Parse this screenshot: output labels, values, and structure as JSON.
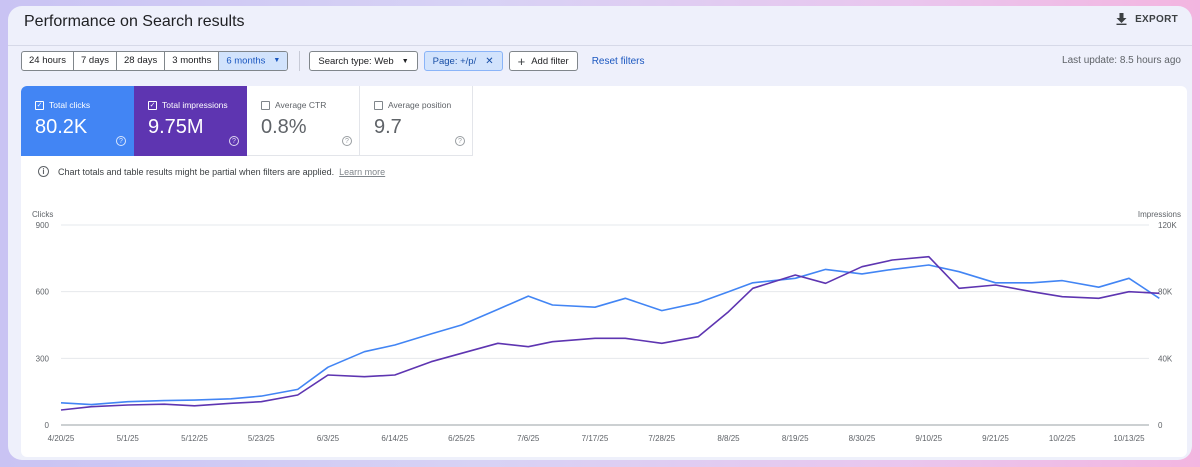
{
  "header": {
    "title": "Performance on Search results",
    "export_label": "EXPORT"
  },
  "filters": {
    "ranges": [
      "24 hours",
      "7 days",
      "28 days",
      "3 months",
      "6 months"
    ],
    "active_range": "6 months",
    "search_type": "Search type: Web",
    "page_filter": "Page: +/p/",
    "add_filter": "Add filter",
    "reset": "Reset filters",
    "last_update": "Last update: 8.5 hours ago"
  },
  "metrics": [
    {
      "label": "Total clicks",
      "value": "80.2K",
      "checked": true
    },
    {
      "label": "Total impressions",
      "value": "9.75M",
      "checked": true
    },
    {
      "label": "Average CTR",
      "value": "0.8%",
      "checked": false
    },
    {
      "label": "Average position",
      "value": "9.7",
      "checked": false
    }
  ],
  "notice": {
    "text": "Chart totals and table results might be partial when filters are applied.",
    "link": "Learn more"
  },
  "colors": {
    "clicks": "#4285f4",
    "impressions": "#5e35b1",
    "link": "#1a57c0"
  },
  "icons": {
    "export": "download-icon",
    "info": "info-icon",
    "help": "help-icon",
    "close": "close-icon",
    "add": "plus-icon",
    "dropdown": "caret-down-icon"
  },
  "chart_data": {
    "type": "line",
    "x_tick_labels": [
      "4/20/25",
      "5/1/25",
      "5/12/25",
      "5/23/25",
      "6/3/25",
      "6/14/25",
      "6/25/25",
      "7/6/25",
      "7/17/25",
      "7/28/25",
      "8/8/25",
      "8/19/25",
      "8/30/25",
      "9/10/25",
      "9/21/25",
      "10/2/25",
      "10/13/25"
    ],
    "y_left": {
      "label": "Clicks",
      "ticks": [
        "900",
        "600",
        "300",
        "0"
      ],
      "range": [
        0,
        900
      ]
    },
    "y_right": {
      "label": "Impressions",
      "ticks": [
        "120K",
        "80K",
        "40K",
        "0"
      ],
      "range": [
        0,
        120000
      ]
    },
    "grid": true,
    "series": [
      {
        "name": "Clicks",
        "axis": "left",
        "color": "#4285f4",
        "x": [
          "4/20/25",
          "4/25/25",
          "5/1/25",
          "5/7/25",
          "5/12/25",
          "5/18/25",
          "5/23/25",
          "5/29/25",
          "6/3/25",
          "6/9/25",
          "6/14/25",
          "6/20/25",
          "6/25/25",
          "7/1/25",
          "7/6/25",
          "7/10/25",
          "7/17/25",
          "7/22/25",
          "7/28/25",
          "8/3/25",
          "8/8/25",
          "8/12/25",
          "8/19/25",
          "8/24/25",
          "8/30/25",
          "9/4/25",
          "9/10/25",
          "9/15/25",
          "9/21/25",
          "9/27/25",
          "10/2/25",
          "10/8/25",
          "10/13/25",
          "10/18/25"
        ],
        "values": [
          100,
          92,
          105,
          110,
          112,
          118,
          130,
          160,
          260,
          330,
          360,
          410,
          450,
          520,
          580,
          540,
          530,
          570,
          515,
          550,
          600,
          640,
          660,
          700,
          680,
          700,
          720,
          690,
          640,
          640,
          650,
          620,
          660,
          570
        ]
      },
      {
        "name": "Impressions",
        "axis": "right",
        "color": "#5e35b1",
        "x": [
          "4/20/25",
          "4/25/25",
          "5/1/25",
          "5/7/25",
          "5/12/25",
          "5/18/25",
          "5/23/25",
          "5/29/25",
          "6/3/25",
          "6/9/25",
          "6/14/25",
          "6/20/25",
          "6/25/25",
          "7/1/25",
          "7/6/25",
          "7/10/25",
          "7/17/25",
          "7/22/25",
          "7/28/25",
          "8/3/25",
          "8/8/25",
          "8/12/25",
          "8/19/25",
          "8/24/25",
          "8/30/25",
          "9/4/25",
          "9/10/25",
          "9/15/25",
          "9/21/25",
          "9/27/25",
          "10/2/25",
          "10/8/25",
          "10/13/25",
          "10/18/25"
        ],
        "values": [
          9000,
          11000,
          12000,
          12500,
          11500,
          13000,
          14000,
          18000,
          30000,
          29000,
          30000,
          38000,
          43000,
          49000,
          47000,
          50000,
          52000,
          52000,
          49000,
          53000,
          68000,
          82000,
          90000,
          85000,
          95000,
          99000,
          101000,
          82000,
          84000,
          80000,
          77000,
          76000,
          80000,
          79000
        ]
      }
    ]
  }
}
